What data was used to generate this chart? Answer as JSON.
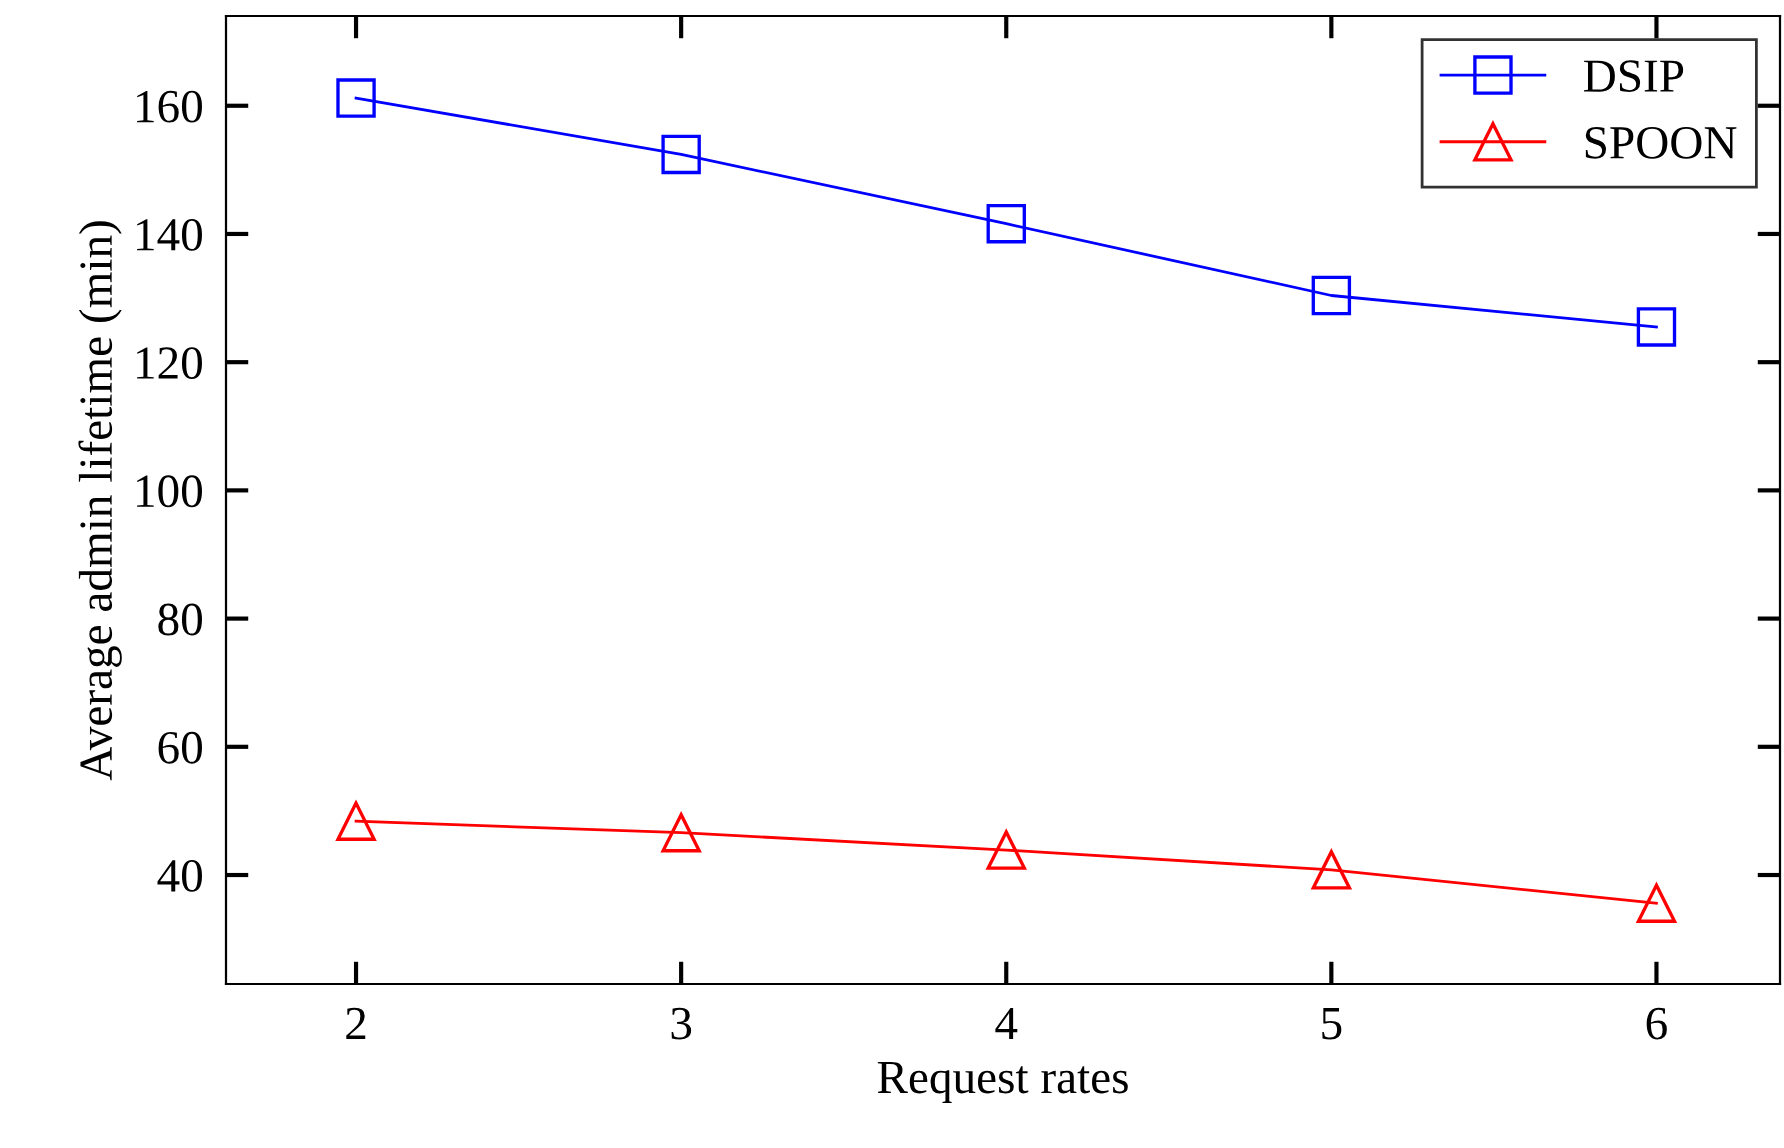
{
  "chart_data": {
    "type": "line",
    "xlabel": "Request rates",
    "ylabel": "Average admin lifetime (min)",
    "x": [
      2,
      3,
      4,
      5,
      6
    ],
    "series": [
      {
        "name": "DSIP",
        "color": "#0000ff",
        "marker": "square",
        "values": [
          161.2,
          152.4,
          141.6,
          130.4,
          125.5
        ]
      },
      {
        "name": "SPOON",
        "color": "#ff0000",
        "marker": "triangle",
        "values": [
          48.4,
          46.6,
          43.9,
          40.8,
          35.6
        ]
      }
    ],
    "xlim": [
      1.6,
      6.38
    ],
    "ylim": [
      23,
      174
    ],
    "xticks": [
      2,
      3,
      4,
      5,
      6
    ],
    "yticks": [
      40,
      60,
      80,
      100,
      120,
      140,
      160
    ],
    "grid": false,
    "legend": "top right",
    "line_style": "solid"
  }
}
